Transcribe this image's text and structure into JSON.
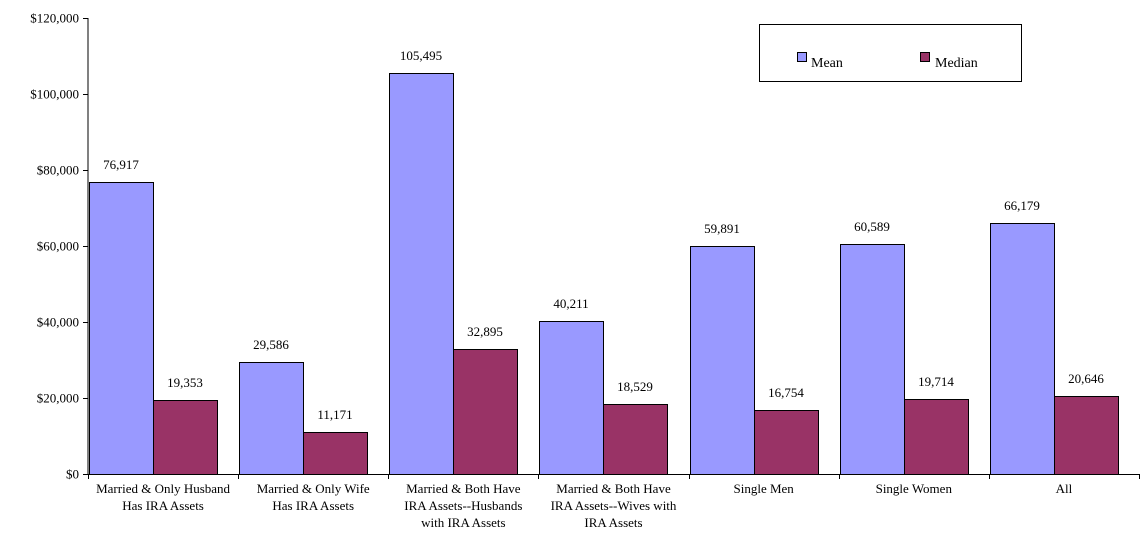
{
  "chart_data": {
    "type": "bar",
    "title": "",
    "xlabel": "",
    "ylabel": "",
    "ylim": [
      0,
      120000
    ],
    "yticks": [
      0,
      20000,
      40000,
      60000,
      80000,
      100000,
      120000
    ],
    "ytick_labels": [
      "$0",
      "$20,000",
      "$40,000",
      "$60,000",
      "$80,000",
      "$100,000",
      "$120,000"
    ],
    "grid": false,
    "legend_position": "top-right",
    "categories": [
      [
        "Married & Only Husband",
        "Has IRA Assets"
      ],
      [
        "Married & Only Wife",
        "Has IRA Assets"
      ],
      [
        "Married & Both Have",
        "IRA Assets--Husbands",
        "with IRA Assets"
      ],
      [
        "Married & Both Have",
        "IRA Assets--Wives with",
        "IRA Assets"
      ],
      [
        "Single Men"
      ],
      [
        "Single Women"
      ],
      [
        "All"
      ]
    ],
    "series": [
      {
        "name": "Mean",
        "color": "#9999ff",
        "values": [
          76917,
          29586,
          105495,
          40211,
          59891,
          60589,
          66179
        ],
        "labels": [
          "76,917",
          "29,586",
          "105,495",
          "40,211",
          "59,891",
          "60,589",
          "66,179"
        ]
      },
      {
        "name": "Median",
        "color": "#993366",
        "values": [
          19353,
          11171,
          32895,
          18529,
          16754,
          19714,
          20646
        ],
        "labels": [
          "19,353",
          "11,171",
          "32,895",
          "18,529",
          "16,754",
          "19,714",
          "20,646"
        ]
      }
    ]
  }
}
